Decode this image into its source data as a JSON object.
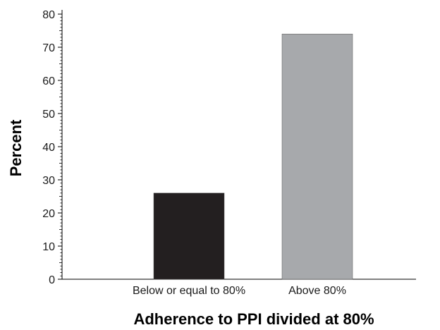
{
  "chart_data": {
    "type": "bar",
    "title": "",
    "xlabel": "Adherence to PPI divided at 80%",
    "ylabel": "Percent",
    "categories": [
      "Below or equal to 80%",
      "Above 80%"
    ],
    "values": [
      26,
      74
    ],
    "colors": [
      "#231f20",
      "#a7a9ac"
    ],
    "ylim": [
      0,
      80
    ],
    "yticks": [
      "0",
      "10",
      "20",
      "30",
      "40",
      "50",
      "60",
      "70",
      "80"
    ],
    "minor_ticks_per_major": 10,
    "grid": false,
    "legend": "none"
  }
}
